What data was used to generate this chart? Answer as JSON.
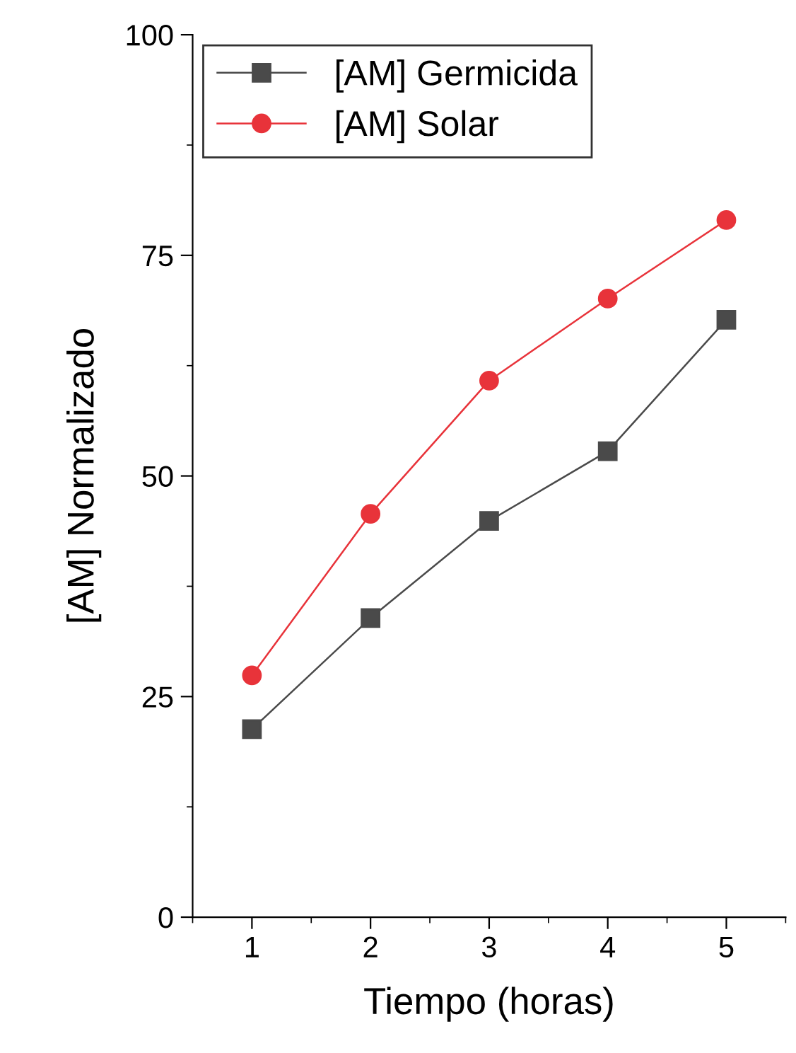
{
  "chart_data": {
    "type": "line",
    "xlabel": "Tiempo (horas)",
    "ylabel": "[AM] Normalizado",
    "x": [
      1,
      2,
      3,
      4,
      5
    ],
    "series": [
      {
        "name": "[AM] Germicida",
        "color": "#4a4a4a",
        "marker": "square",
        "values": [
          21.3,
          33.9,
          44.9,
          52.8,
          67.7
        ]
      },
      {
        "name": "[AM] Solar",
        "color": "#e8333a",
        "marker": "circle",
        "values": [
          27.4,
          45.7,
          60.8,
          70.1,
          79.0
        ]
      }
    ],
    "xlim": [
      0.5,
      5.5
    ],
    "xticks": [
      1,
      2,
      3,
      4,
      5
    ],
    "ylim": [
      0,
      100
    ],
    "yticks": [
      0,
      25,
      50,
      75,
      100
    ],
    "grid": false,
    "legend": "top left",
    "line_style": "solid"
  }
}
